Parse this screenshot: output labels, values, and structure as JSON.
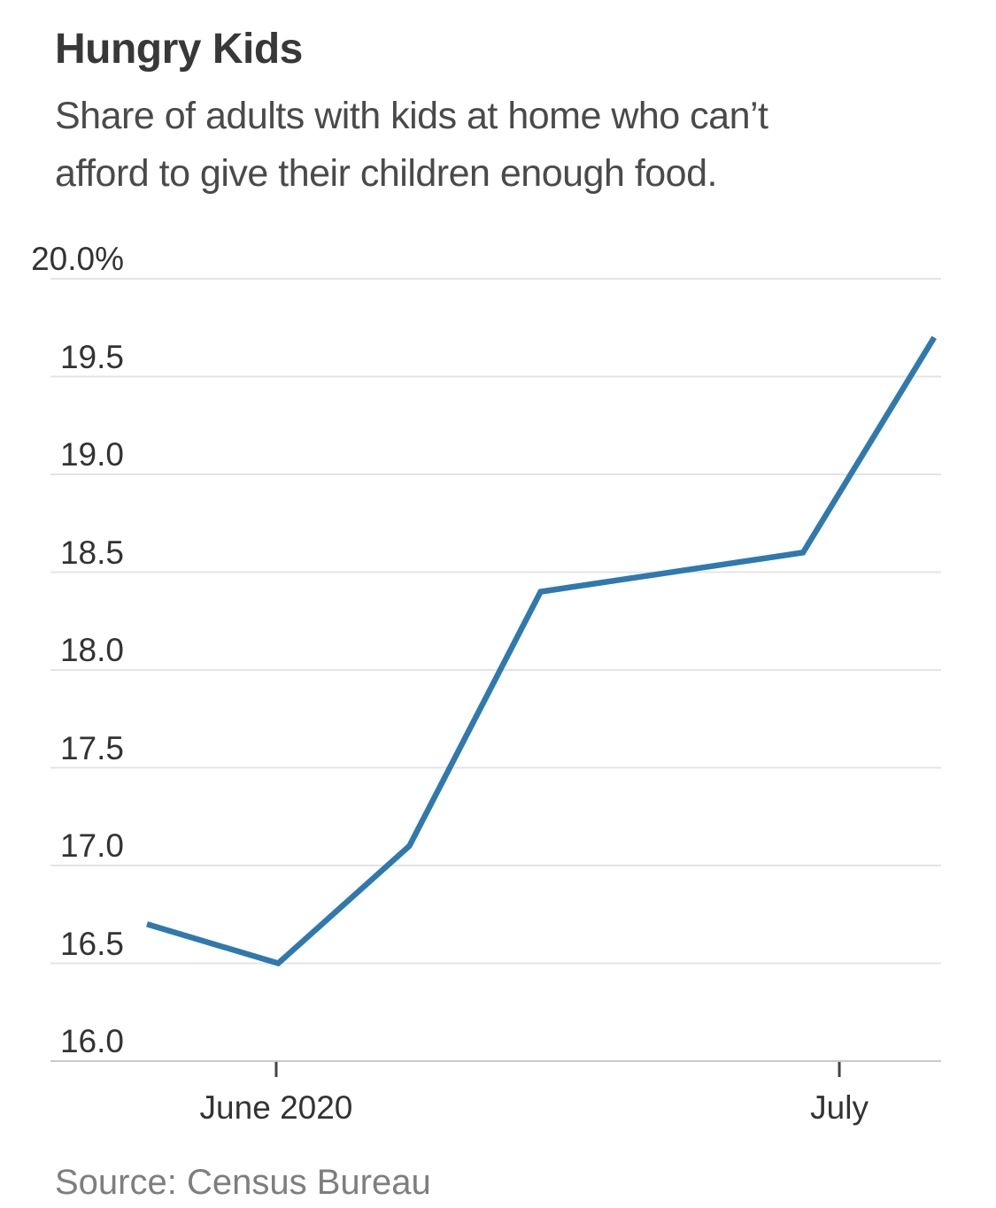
{
  "page": {
    "background": "#ffffff"
  },
  "chart_data": {
    "type": "line",
    "title": "Hungry Kids",
    "subtitle": "Share of adults with kids at home who can’t afford to give their children enough food.",
    "subtitle_lines": [
      "Share of adults with kids at home who can’t",
      "afford to give their children enough food."
    ],
    "source": "Source: Census Bureau",
    "xlabel": "",
    "ylabel": "",
    "ylim": [
      16.0,
      20.0
    ],
    "grid": true,
    "legend": "none",
    "series": [
      {
        "name": "Share of adults with kids at home who can't afford enough food (%)",
        "points": [
          {
            "week_index": 0,
            "value": 16.7
          },
          {
            "week_index": 1,
            "value": 16.5
          },
          {
            "week_index": 2,
            "value": 17.1
          },
          {
            "week_index": 3,
            "value": 18.4
          },
          {
            "week_index": 5,
            "value": 18.6
          },
          {
            "week_index": 6,
            "value": 19.7
          }
        ]
      }
    ],
    "y_ticks": [
      {
        "value": 20.0,
        "label": "20.0",
        "suffix": "%"
      },
      {
        "value": 19.5,
        "label": "19.5",
        "suffix": ""
      },
      {
        "value": 19.0,
        "label": "19.0",
        "suffix": ""
      },
      {
        "value": 18.5,
        "label": "18.5",
        "suffix": ""
      },
      {
        "value": 18.0,
        "label": "18.0",
        "suffix": ""
      },
      {
        "value": 17.5,
        "label": "17.5",
        "suffix": ""
      },
      {
        "value": 17.0,
        "label": "17.0",
        "suffix": ""
      },
      {
        "value": 16.5,
        "label": "16.5",
        "suffix": ""
      },
      {
        "value": 16.0,
        "label": "16.0",
        "suffix": ""
      }
    ],
    "x_ticks": [
      {
        "label": "June 2020",
        "week_index": 0.985
      },
      {
        "label": "July",
        "week_index": 5.277
      }
    ],
    "colors": {
      "line": "#2f79ae",
      "grid": "#e4e4e4",
      "axis": "#c9c9c9",
      "tick": "#444444",
      "title": "#383838",
      "subtitle": "#4a4a4a",
      "axis_label": "#333333",
      "source": "#7e7e7e"
    }
  }
}
